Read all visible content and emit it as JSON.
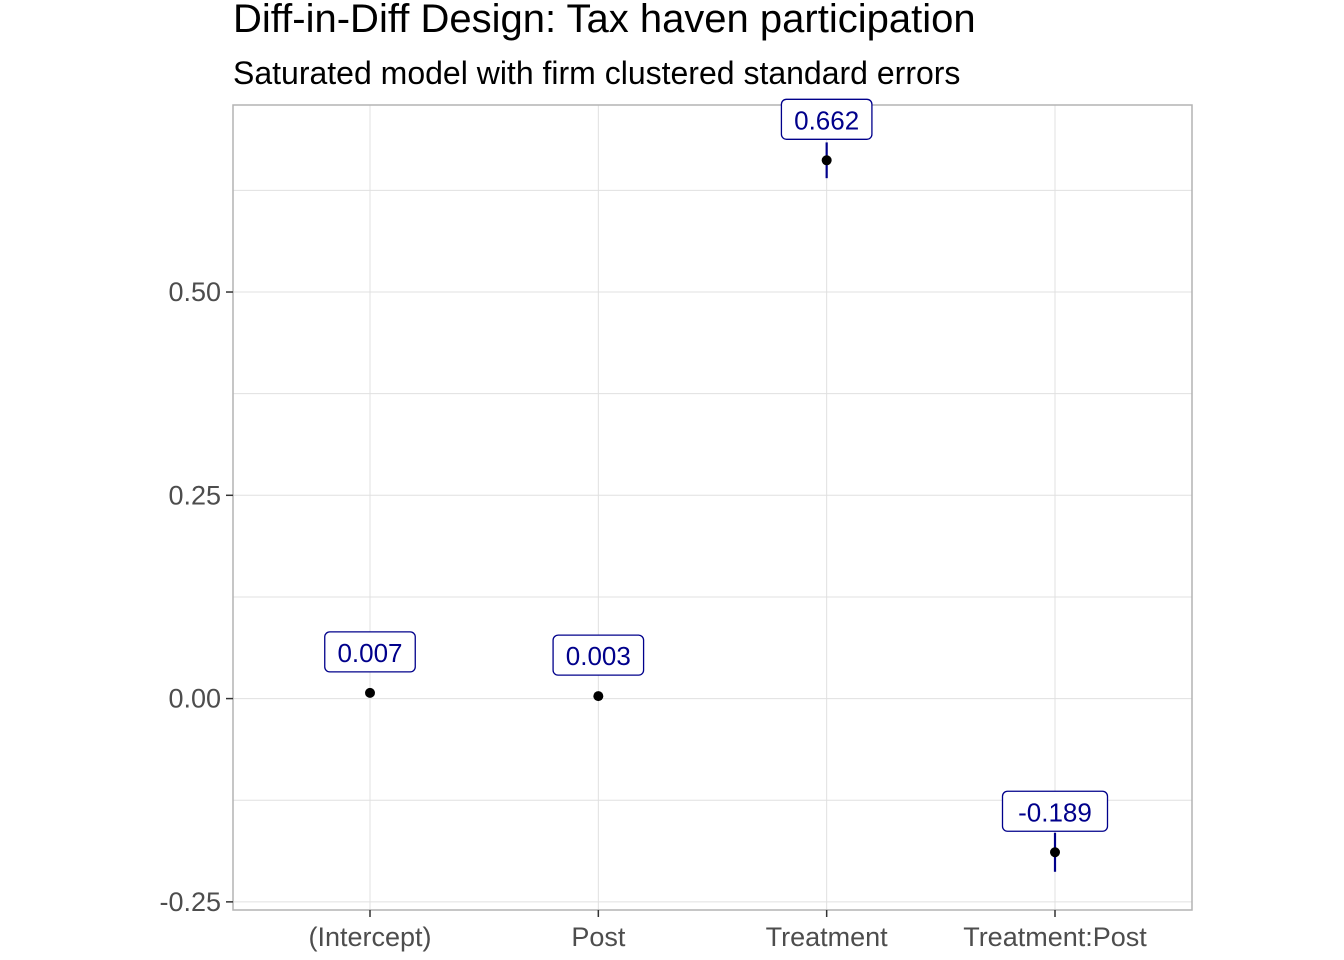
{
  "chart_data": {
    "type": "scatter",
    "title": "Diff-in-Diff Design: Tax haven participation",
    "subtitle": "Saturated model with firm clustered standard errors",
    "xlabel": "",
    "ylabel": "",
    "categories": [
      "(Intercept)",
      "Post",
      "Treatment",
      "Treatment:Post"
    ],
    "values": [
      0.007,
      0.003,
      0.662,
      -0.189
    ],
    "data_labels": [
      "0.007",
      "0.003",
      "0.662",
      "-0.189"
    ],
    "error_bars": [
      {
        "low": 0.006,
        "high": 0.008
      },
      {
        "low": 0.002,
        "high": 0.004
      },
      {
        "low": 0.64,
        "high": 0.684
      },
      {
        "low": -0.213,
        "high": -0.165
      }
    ],
    "ylim": [
      -0.26,
      0.73
    ],
    "y_ticks": [
      -0.25,
      0.0,
      0.25,
      0.5
    ],
    "y_tick_labels": [
      "-0.25",
      "0.00",
      "0.25",
      "0.50"
    ],
    "grid": true,
    "colors": {
      "point": "#000000",
      "errorbar": "#00008b",
      "label": "#00008b",
      "grid": "#e0e0e0",
      "panel_border": "#b3b3b3"
    }
  }
}
